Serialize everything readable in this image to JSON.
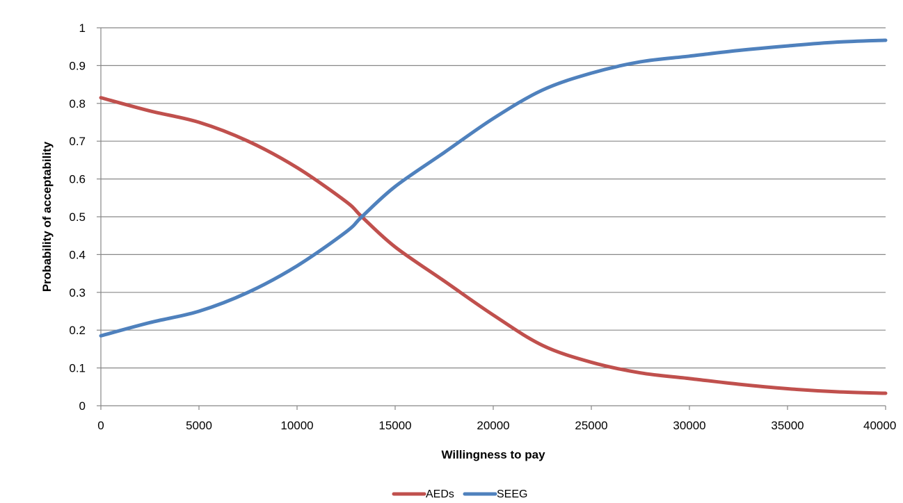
{
  "chart_data": {
    "type": "line",
    "title": "",
    "xlabel": "Willingness  to pay",
    "ylabel": "Probability of acceptability",
    "xlim": [
      0,
      40000
    ],
    "ylim": [
      0,
      1
    ],
    "x_ticks": [
      "0",
      "5000",
      "10000",
      "15000",
      "20000",
      "25000",
      "30000",
      "35000",
      "40000"
    ],
    "y_ticks": [
      "0",
      "0.1",
      "0.2",
      "0.3",
      "0.4",
      "0.5",
      "0.6",
      "0.7",
      "0.8",
      "0.9",
      "1"
    ],
    "grid": "horizontal",
    "legend_position": "bottom",
    "series": [
      {
        "name": "AEDs",
        "color": "#c0504d",
        "x": [
          0,
          2500,
          5000,
          7500,
          10000,
          12500,
          13300,
          15000,
          17500,
          20000,
          22500,
          25000,
          27500,
          30000,
          32500,
          35000,
          37500,
          40000
        ],
        "y": [
          0.815,
          0.78,
          0.75,
          0.7,
          0.63,
          0.54,
          0.5,
          0.42,
          0.33,
          0.24,
          0.16,
          0.115,
          0.087,
          0.072,
          0.057,
          0.045,
          0.037,
          0.033
        ]
      },
      {
        "name": "SEEG",
        "color": "#4f81bd",
        "x": [
          0,
          2500,
          5000,
          7500,
          10000,
          12500,
          13300,
          15000,
          17500,
          20000,
          22500,
          25000,
          27500,
          30000,
          32500,
          35000,
          37500,
          40000
        ],
        "y": [
          0.185,
          0.22,
          0.25,
          0.3,
          0.37,
          0.46,
          0.5,
          0.58,
          0.67,
          0.76,
          0.835,
          0.88,
          0.91,
          0.925,
          0.94,
          0.952,
          0.962,
          0.967
        ]
      }
    ]
  }
}
